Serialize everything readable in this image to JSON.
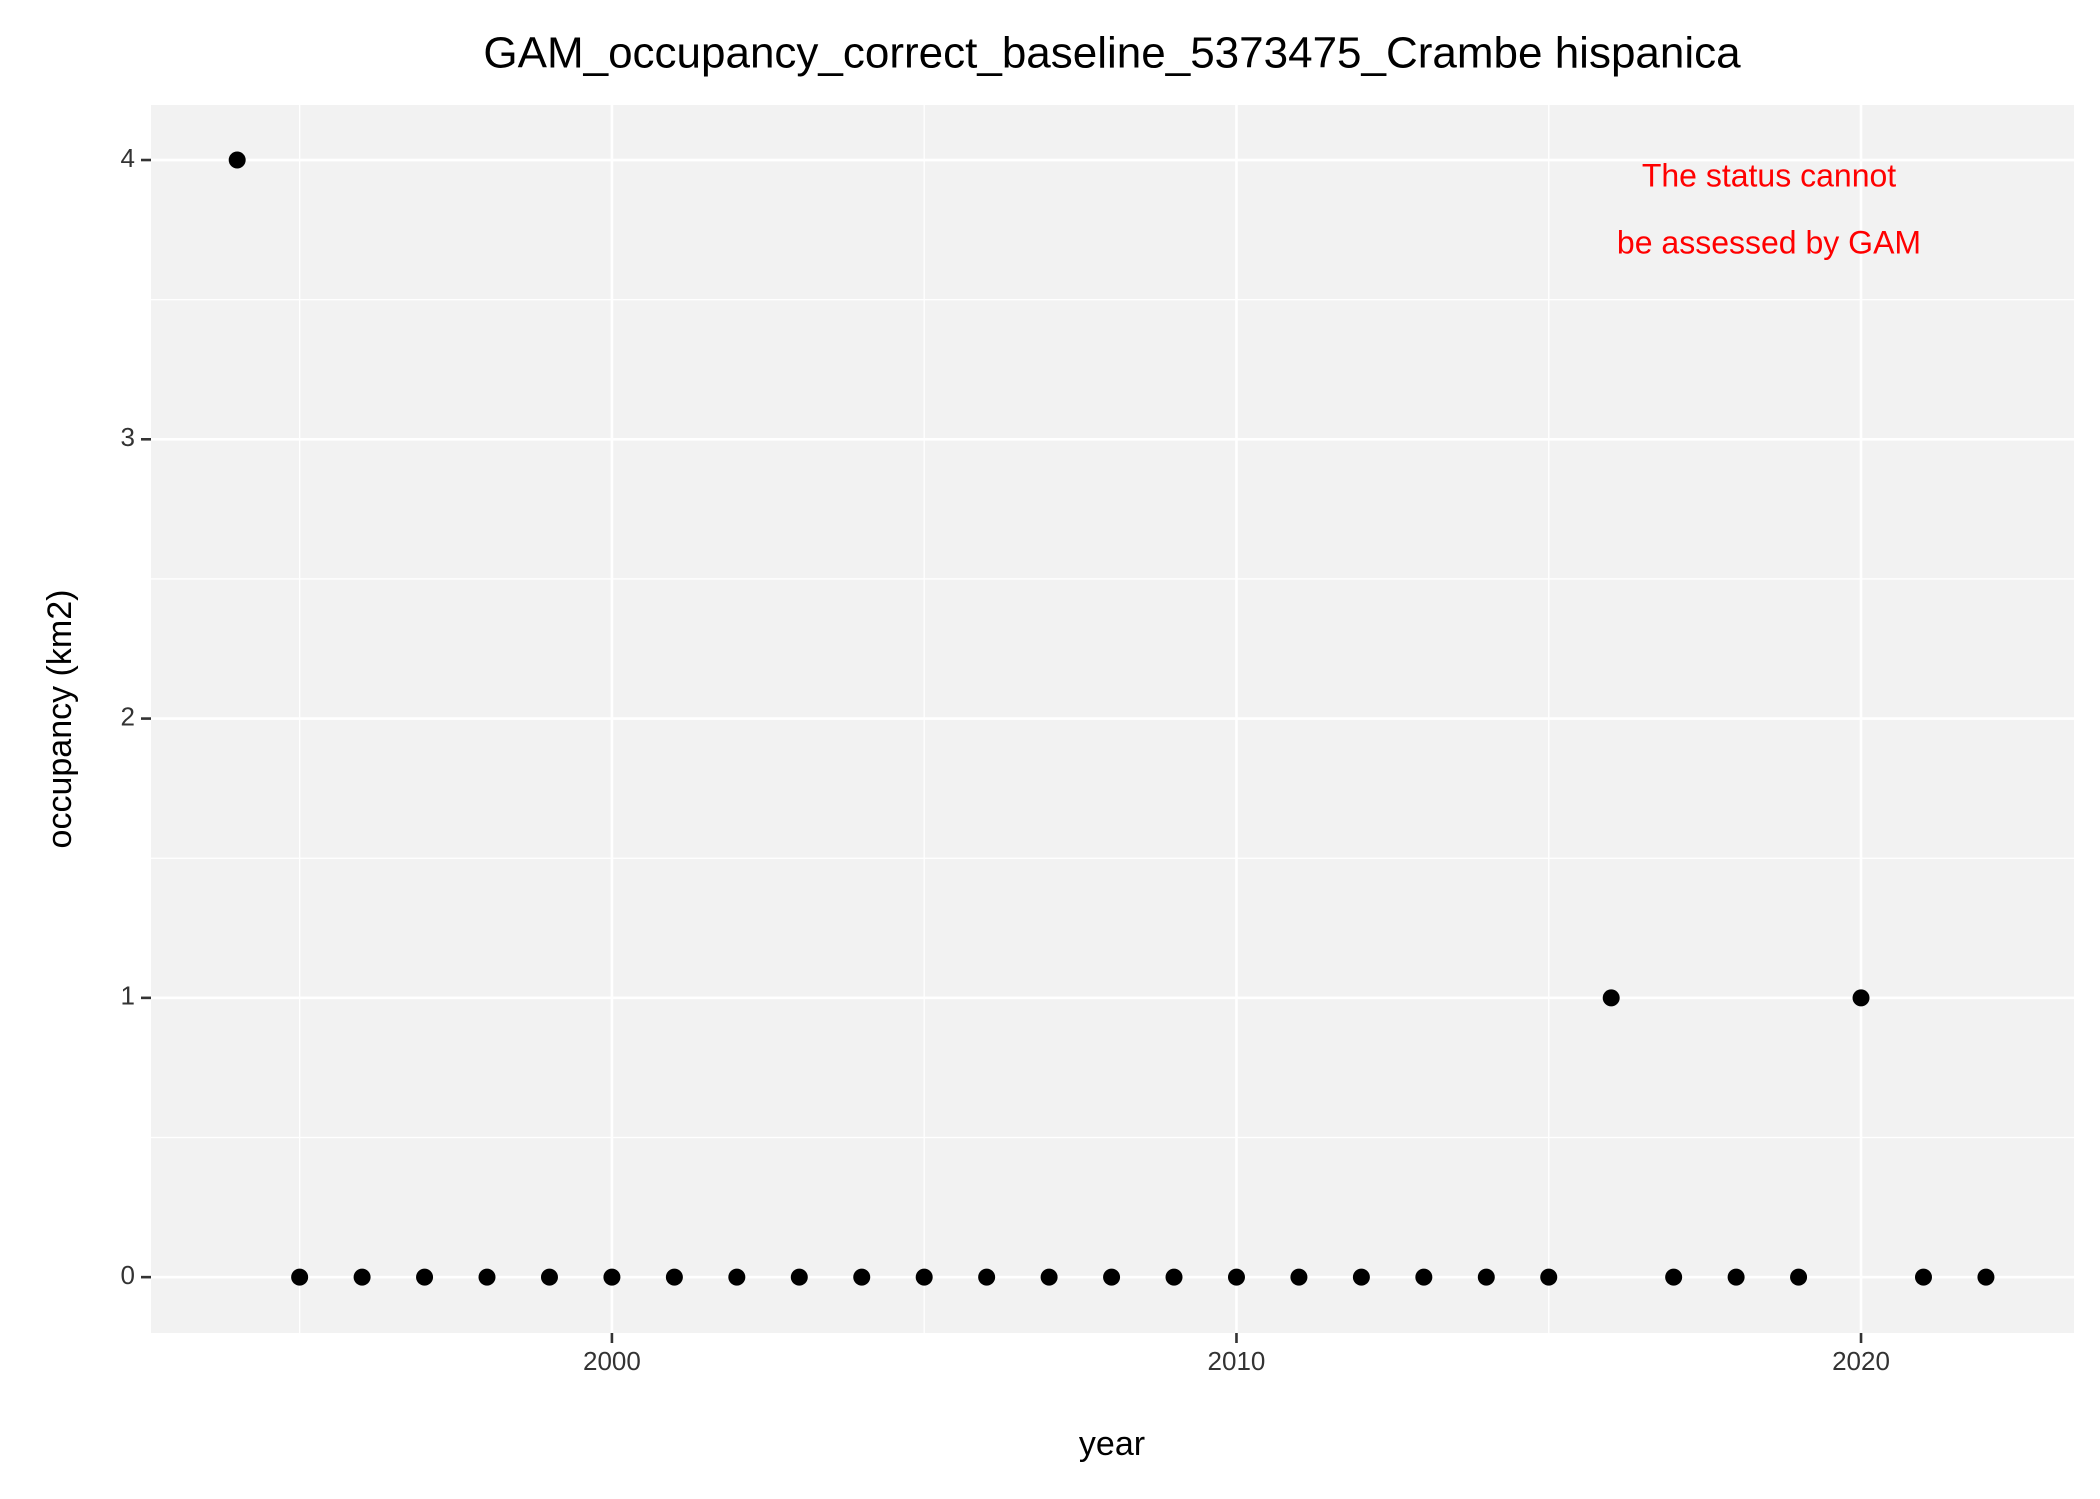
{
  "chart_data": {
    "type": "scatter",
    "title": "GAM_occupancy_correct_baseline_5373475_Crambe hispanica",
    "xlabel": "year",
    "ylabel": "occupancy (km2)",
    "annotation": [
      "The status cannot",
      "be assessed by GAM"
    ],
    "x": [
      1994,
      1995,
      1996,
      1997,
      1998,
      1999,
      2000,
      2001,
      2002,
      2003,
      2004,
      2005,
      2006,
      2007,
      2008,
      2009,
      2010,
      2011,
      2012,
      2013,
      2014,
      2015,
      2016,
      2017,
      2018,
      2019,
      2020,
      2021,
      2022
    ],
    "values": [
      4,
      0,
      0,
      0,
      0,
      0,
      0,
      0,
      0,
      0,
      0,
      0,
      0,
      0,
      0,
      0,
      0,
      0,
      0,
      0,
      0,
      0,
      1,
      0,
      0,
      0,
      1,
      0,
      0
    ],
    "color": "#000000",
    "xlim": [
      1992.62,
      2023.41
    ],
    "ylim": [
      -0.2,
      4.197
    ],
    "xticks": [
      2000,
      2010,
      2020
    ],
    "yticks": [
      0,
      1,
      2,
      3,
      4
    ],
    "grid": true,
    "panel_color": "#f2f2f2",
    "annotation_color": "#ff0000"
  }
}
